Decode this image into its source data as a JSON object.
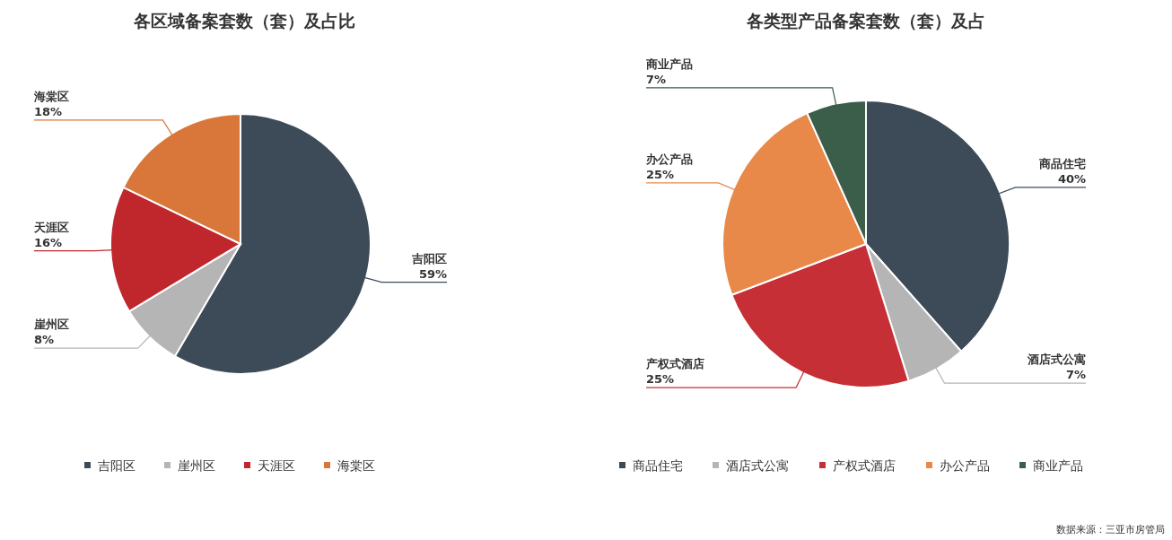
{
  "chart_data": [
    {
      "type": "pie",
      "title": "各区域备案套数（套）及占比",
      "categories": [
        "吉阳区",
        "崖州区",
        "天涯区",
        "海棠区"
      ],
      "values": [
        59,
        8,
        16,
        18
      ],
      "value_labels": [
        "59%",
        "8%",
        "16%",
        "18%"
      ],
      "colors": [
        "#3d4b59",
        "#b5b5b5",
        "#c0272d",
        "#d9773a"
      ],
      "legend": "bottom"
    },
    {
      "type": "pie",
      "title": "各类型产品备案套数（套）及占",
      "categories": [
        "商品住宅",
        "酒店式公寓",
        "产权式酒店",
        "办公产品",
        "商业产品"
      ],
      "values": [
        40,
        7,
        25,
        25,
        7
      ],
      "value_labels": [
        "40%",
        "7%",
        "25%",
        "25%",
        "7%"
      ],
      "colors": [
        "#3d4b59",
        "#b5b5b5",
        "#c62f36",
        "#e8894a",
        "#3a5e4a"
      ],
      "legend": "bottom",
      "annotations": [
        "数据来源：三亚市房管局"
      ]
    }
  ]
}
